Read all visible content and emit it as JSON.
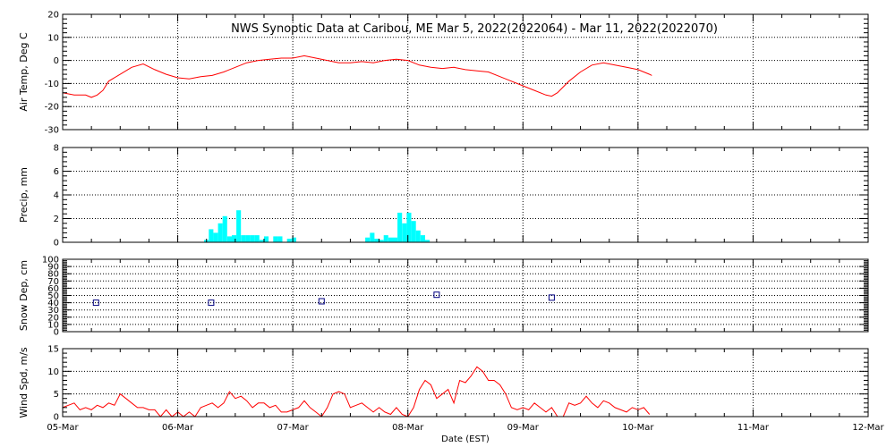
{
  "title": "NWS Synoptic Data at Caribou, ME   Mar  5, 2022(2022064) - Mar 11, 2022(2022070)",
  "xlabel": "Date (EST)",
  "x_ticks": [
    "05-Mar",
    "06-Mar",
    "07-Mar",
    "08-Mar",
    "09-Mar",
    "10-Mar",
    "11-Mar",
    "12-Mar"
  ],
  "colors": {
    "temp": "#ff0000",
    "precip": "#00ffff",
    "snow": "#000080",
    "wind": "#ff0000"
  },
  "chart_data": [
    {
      "type": "line",
      "ylabel": "Air Temp, Deg C",
      "ylim": [
        -30,
        20
      ],
      "yticks": [
        20,
        10,
        0,
        -10,
        -20,
        -30
      ],
      "grid": true,
      "x_unit": "days since 05-Mar 00:00 EST",
      "series": [
        {
          "x": [
            0,
            0.1,
            0.2,
            0.25,
            0.3,
            0.35,
            0.4,
            0.5,
            0.6,
            0.7,
            0.8,
            0.9,
            1.0,
            1.1,
            1.2,
            1.3,
            1.4,
            1.5,
            1.6,
            1.7,
            1.8,
            1.9,
            2.0,
            2.1,
            2.2,
            2.3,
            2.4,
            2.5,
            2.6,
            2.7,
            2.8,
            2.9,
            3.0,
            3.1,
            3.2,
            3.3,
            3.4,
            3.5,
            3.6,
            3.7,
            3.8,
            3.9,
            4.0,
            4.1,
            4.2,
            4.25,
            4.3,
            4.4,
            4.5,
            4.6,
            4.7,
            4.8,
            4.9,
            5.0,
            5.1,
            5.12
          ],
          "values": [
            -14,
            -15,
            -15,
            -16,
            -15,
            -13,
            -9,
            -6,
            -3,
            -1.5,
            -4,
            -6,
            -7.5,
            -8,
            -7,
            -6.5,
            -5,
            -3,
            -1,
            0,
            0.5,
            1,
            1,
            2,
            1,
            0,
            -1,
            -1,
            -0.5,
            -1,
            0,
            0.5,
            0,
            -2,
            -3,
            -3.5,
            -3,
            -4,
            -4.5,
            -5,
            -7,
            -9,
            -11,
            -13,
            -15,
            -15.5,
            -14,
            -9,
            -5,
            -2,
            -1,
            -2,
            -3,
            -4,
            -6,
            -6.5
          ]
        }
      ]
    },
    {
      "type": "bar",
      "ylabel": "Precip, mm",
      "ylim": [
        0,
        8
      ],
      "yticks": [
        0,
        2,
        4,
        6,
        8
      ],
      "grid": true,
      "x_unit": "days since 05-Mar 00:00 EST",
      "series": [
        {
          "x": [
            1.23,
            1.27,
            1.31,
            1.35,
            1.39,
            1.43,
            1.47,
            1.51,
            1.55,
            1.59,
            1.63,
            1.67,
            1.71,
            1.75,
            1.83,
            1.87,
            1.95,
            1.99,
            2.63,
            2.67,
            2.71,
            2.75,
            2.79,
            2.83,
            2.87,
            2.91,
            2.95,
            2.99,
            3.03,
            3.07,
            3.11,
            3.15
          ],
          "values": [
            0.2,
            1.1,
            0.8,
            1.6,
            2.2,
            0.5,
            0.6,
            2.7,
            0.6,
            0.6,
            0.6,
            0.6,
            0.2,
            0.5,
            0.5,
            0.5,
            0.3,
            0.4,
            0.4,
            0.8,
            0.3,
            0.2,
            0.6,
            0.4,
            0.4,
            2.5,
            1.6,
            2.5,
            1.8,
            1.0,
            0.6,
            0.2
          ]
        }
      ]
    },
    {
      "type": "scatter",
      "ylabel": "Snow Dep, cm",
      "ylim": [
        0,
        100
      ],
      "yticks": [
        0,
        10,
        20,
        30,
        40,
        50,
        60,
        70,
        80,
        90,
        100
      ],
      "grid": true,
      "x_unit": "days since 05-Mar 00:00 EST",
      "series": [
        {
          "x": [
            0.29,
            1.29,
            2.25,
            3.25,
            4.25
          ],
          "values": [
            40,
            40,
            42,
            51,
            47
          ]
        }
      ]
    },
    {
      "type": "line",
      "ylabel": "Wind Spd, m/s",
      "ylim": [
        0,
        15
      ],
      "yticks": [
        0,
        5,
        10,
        15
      ],
      "grid": true,
      "x_unit": "days since 05-Mar 00:00 EST",
      "series": [
        {
          "x": [
            0,
            0.05,
            0.1,
            0.15,
            0.2,
            0.25,
            0.3,
            0.35,
            0.4,
            0.45,
            0.5,
            0.55,
            0.6,
            0.65,
            0.7,
            0.75,
            0.8,
            0.85,
            0.9,
            0.95,
            1.0,
            1.05,
            1.1,
            1.15,
            1.2,
            1.25,
            1.3,
            1.35,
            1.4,
            1.45,
            1.5,
            1.55,
            1.6,
            1.65,
            1.7,
            1.75,
            1.8,
            1.85,
            1.9,
            1.95,
            2.0,
            2.05,
            2.1,
            2.15,
            2.2,
            2.25,
            2.3,
            2.35,
            2.4,
            2.45,
            2.5,
            2.55,
            2.6,
            2.65,
            2.7,
            2.75,
            2.8,
            2.85,
            2.9,
            2.95,
            3.0,
            3.05,
            3.1,
            3.15,
            3.2,
            3.25,
            3.3,
            3.35,
            3.4,
            3.45,
            3.5,
            3.55,
            3.6,
            3.65,
            3.7,
            3.75,
            3.8,
            3.85,
            3.9,
            3.95,
            4.0,
            4.05,
            4.1,
            4.15,
            4.2,
            4.25,
            4.3,
            4.35,
            4.4,
            4.45,
            4.5,
            4.55,
            4.6,
            4.65,
            4.7,
            4.75,
            4.8,
            4.85,
            4.9,
            4.95,
            5.0,
            5.05,
            5.1
          ],
          "values": [
            2,
            2.5,
            3,
            1.5,
            2,
            1.5,
            2.5,
            2,
            3,
            2.5,
            5,
            4,
            3,
            2,
            2,
            1.5,
            1.5,
            0,
            1.5,
            0,
            1,
            0,
            1,
            0,
            2,
            2.5,
            3,
            2,
            3,
            5.5,
            4,
            4.5,
            3.5,
            2,
            3,
            3,
            2,
            2.5,
            1,
            1,
            1.5,
            2,
            3.5,
            2,
            1,
            0,
            2,
            5,
            5.5,
            5,
            2,
            2.5,
            3,
            2,
            1,
            2,
            1,
            0.5,
            2,
            0.5,
            0,
            2,
            6,
            8,
            7,
            4,
            5,
            6,
            3,
            8,
            7.5,
            9,
            11,
            10,
            8,
            8,
            7,
            5,
            2,
            1.5,
            2,
            1.5,
            3,
            2,
            1,
            2,
            0,
            0,
            3,
            2.5,
            3,
            4.5,
            3,
            2,
            3.5,
            3,
            2,
            1.5,
            1,
            2,
            1.5,
            2,
            0.5
          ]
        }
      ]
    }
  ]
}
